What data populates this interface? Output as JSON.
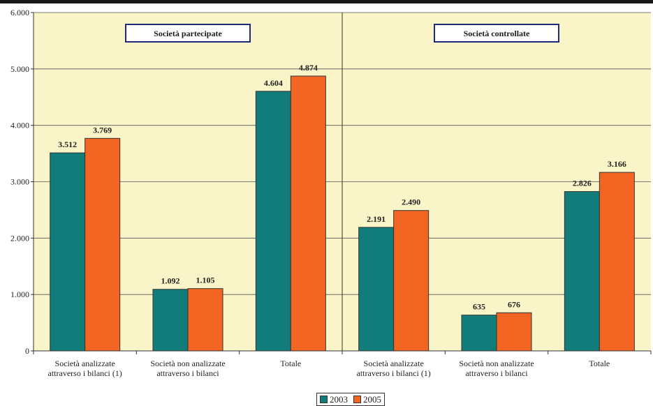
{
  "chart_data": {
    "type": "bar",
    "panels": [
      {
        "title": "Società partecipate",
        "categories": [
          "Società analizzate\nattraverso i bilanci (1)",
          "Società non analizzate\nattraverso i bilanci",
          "Totale"
        ],
        "series": [
          {
            "name": "2003",
            "values": [
              3512,
              1092,
              4604
            ]
          },
          {
            "name": "2005",
            "values": [
              3769,
              1105,
              4874
            ]
          }
        ],
        "value_labels": [
          [
            "3.512",
            "1.092",
            "4.604"
          ],
          [
            "3.769",
            "1.105",
            "4.874"
          ]
        ]
      },
      {
        "title": "Società controllate",
        "categories": [
          "Società analizzate\nattraverso i bilanci (1)",
          "Società non analizzate\nattraverso i bilanci",
          "Totale"
        ],
        "series": [
          {
            "name": "2003",
            "values": [
              2191,
              635,
              2826
            ]
          },
          {
            "name": "2005",
            "values": [
              2490,
              676,
              3166
            ]
          }
        ],
        "value_labels": [
          [
            "2.191",
            "635",
            "2.826"
          ],
          [
            "2.490",
            "676",
            "3.166"
          ]
        ]
      }
    ],
    "yticks": [
      0,
      1000,
      2000,
      3000,
      4000,
      5000,
      6000
    ],
    "ytick_labels": [
      "0",
      "1.000",
      "2.000",
      "3.000",
      "4.000",
      "5.000",
      "6.000"
    ],
    "ylim": [
      0,
      6000
    ],
    "grid": true,
    "legend": {
      "placement": "bottom-center",
      "entries": [
        "2003",
        "2005"
      ]
    },
    "colors": {
      "2003": "#127c7a",
      "2005": "#f26522",
      "plot_bg": "#f9f5c8",
      "title_border": "#1f2a78"
    }
  }
}
